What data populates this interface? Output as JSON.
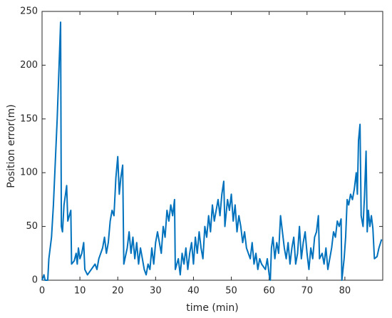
{
  "chart_data": {
    "type": "line",
    "xlabel": "time (min)",
    "ylabel": "Position error(m)",
    "xlim": [
      0,
      90
    ],
    "ylim": [
      0,
      250
    ],
    "xticks": [
      0,
      10,
      20,
      30,
      40,
      50,
      60,
      70,
      80
    ],
    "yticks": [
      0,
      50,
      100,
      150,
      200,
      250
    ],
    "grid": false,
    "x": [
      0,
      0.5,
      0.8,
      1.5,
      1.8,
      2.5,
      3,
      3.5,
      4,
      4.5,
      4.9,
      5.1,
      5.4,
      5.8,
      6.2,
      6.5,
      6.8,
      7.2,
      7.6,
      7.8,
      8.5,
      9,
      9.3,
      9.6,
      10,
      10.5,
      11,
      11.3,
      12,
      13,
      14,
      14.5,
      15,
      16,
      16.5,
      17,
      17.5,
      18,
      18.5,
      19,
      19.5,
      20,
      20.4,
      20.8,
      21.3,
      21.6,
      22.5,
      23,
      23.5,
      24,
      24.5,
      25,
      25.5,
      26,
      26.5,
      27,
      27.5,
      28,
      28.5,
      29,
      29.5,
      30,
      30.5,
      31,
      31.5,
      32,
      32.5,
      33,
      33.5,
      34,
      34.5,
      35,
      35.2,
      36,
      36.5,
      37,
      37.5,
      38,
      38.5,
      39,
      39.5,
      40,
      40.5,
      41,
      41.5,
      42,
      42.5,
      43,
      43.5,
      44,
      44.5,
      45,
      45.5,
      46,
      46.5,
      47,
      47.5,
      48,
      48.3,
      49,
      49.5,
      50,
      50.5,
      51,
      51.5,
      52,
      52.5,
      53,
      53.5,
      54,
      55,
      55.5,
      56,
      56.5,
      57,
      57.5,
      58,
      59,
      59.5,
      60,
      60.3,
      60.6,
      61,
      61.5,
      62,
      62.5,
      63,
      63.5,
      64,
      64.5,
      65,
      65.5,
      66,
      66.5,
      67,
      67.5,
      68,
      68.5,
      69,
      69.5,
      70,
      70.5,
      71,
      71.5,
      72,
      72.5,
      73,
      73.3,
      74,
      74.5,
      75,
      75.5,
      76,
      76.5,
      77,
      77.5,
      78,
      78.5,
      79,
      79.2,
      79.8,
      80.2,
      80.6,
      81,
      81.5,
      82,
      82.5,
      83,
      83.3,
      83.6,
      84,
      84.3,
      84.8,
      85.2,
      85.6,
      85.9,
      86.2,
      86.6,
      87,
      87.4,
      87.8,
      88.5,
      89,
      89.7
    ],
    "series": [
      {
        "color": "#0072BD",
        "values": [
          0,
          5,
          0,
          0,
          20,
          40,
          70,
          110,
          150,
          200,
          240,
          50,
          45,
          70,
          80,
          88,
          55,
          60,
          65,
          15,
          18,
          25,
          15,
          30,
          20,
          25,
          35,
          10,
          5,
          10,
          15,
          10,
          20,
          30,
          40,
          25,
          35,
          55,
          65,
          60,
          95,
          115,
          80,
          95,
          107,
          15,
          30,
          45,
          25,
          40,
          20,
          35,
          15,
          30,
          20,
          10,
          5,
          15,
          10,
          30,
          15,
          35,
          45,
          35,
          25,
          50,
          40,
          65,
          55,
          70,
          60,
          75,
          10,
          20,
          5,
          25,
          15,
          30,
          10,
          25,
          35,
          15,
          40,
          25,
          45,
          30,
          20,
          50,
          40,
          60,
          45,
          70,
          55,
          65,
          75,
          60,
          80,
          92,
          50,
          75,
          65,
          80,
          55,
          70,
          45,
          60,
          50,
          35,
          45,
          30,
          20,
          35,
          15,
          25,
          10,
          20,
          15,
          10,
          20,
          5,
          0,
          30,
          40,
          20,
          35,
          25,
          60,
          45,
          30,
          20,
          35,
          15,
          30,
          40,
          15,
          25,
          50,
          20,
          35,
          45,
          25,
          10,
          30,
          20,
          40,
          45,
          60,
          20,
          25,
          15,
          30,
          10,
          20,
          30,
          45,
          40,
          55,
          50,
          57,
          0,
          20,
          40,
          75,
          70,
          80,
          75,
          85,
          100,
          80,
          130,
          145,
          60,
          50,
          80,
          120,
          45,
          65,
          50,
          60,
          48,
          20,
          22,
          30,
          38
        ]
      }
    ]
  }
}
